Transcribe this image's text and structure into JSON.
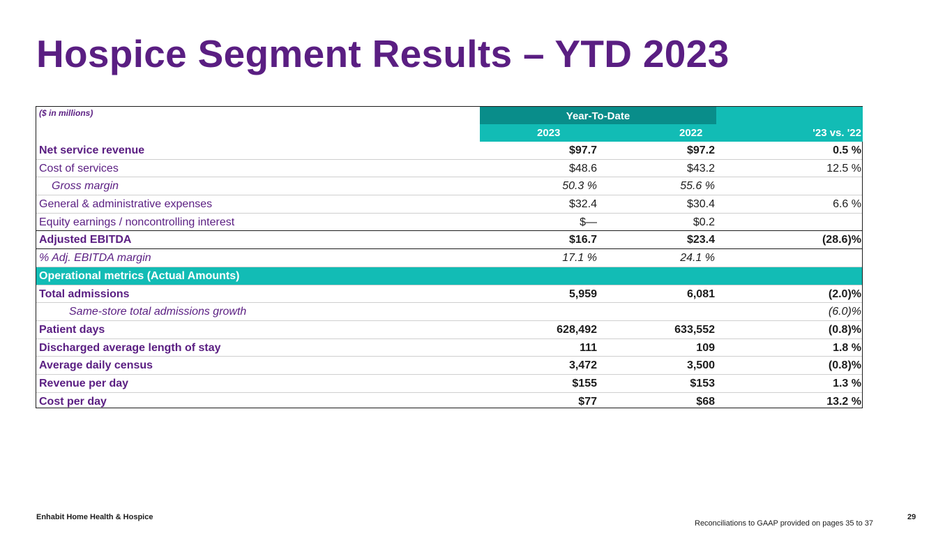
{
  "title": "Hospice Segment Results – YTD 2023",
  "table": {
    "units_label": "($ in millions)",
    "group_header": "Year-To-Date",
    "columns": [
      "2023",
      "2022",
      "'23 vs. '22"
    ],
    "rows": [
      {
        "label": "Net service revenue",
        "v2023": "$97.7",
        "v2022": "$97.2",
        "change": "0.5 %",
        "style": "bold"
      },
      {
        "label": "Cost of services",
        "v2023": "$48.6",
        "v2022": "$43.2",
        "change": "12.5 %",
        "style": "normal"
      },
      {
        "label": "Gross margin",
        "v2023": "50.3 %",
        "v2022": "55.6 %",
        "change": "",
        "style": "italic-indent"
      },
      {
        "label": "General & administrative expenses",
        "v2023": "$32.4",
        "v2022": "$30.4",
        "change": "6.6 %",
        "style": "normal"
      },
      {
        "label": "Equity earnings / noncontrolling interest",
        "v2023": "$—",
        "v2022": "$0.2",
        "change": "",
        "style": "normal-thick"
      },
      {
        "label": "Adjusted EBITDA",
        "v2023": "$16.7",
        "v2022": "$23.4",
        "change": "(28.6)%",
        "style": "bold-thick"
      },
      {
        "label": "%  Adj. EBITDA margin",
        "v2023": "17.1 %",
        "v2022": "24.1 %",
        "change": "",
        "style": "italic"
      },
      {
        "label": "Operational metrics (Actual Amounts)",
        "v2023": "",
        "v2022": "",
        "change": "",
        "style": "section"
      },
      {
        "label": "Total admissions",
        "v2023": "5,959",
        "v2022": "6,081",
        "change": "(2.0)%",
        "style": "bold"
      },
      {
        "label": "Same-store total admissions growth",
        "v2023": "",
        "v2022": "",
        "change": "(6.0)%",
        "style": "italic-indent2"
      },
      {
        "label": "Patient days",
        "v2023": "628,492",
        "v2022": "633,552",
        "change": "(0.8)%",
        "style": "bold"
      },
      {
        "label": "Discharged average length of stay",
        "v2023": "111",
        "v2022": "109",
        "change": "1.8 %",
        "style": "bold"
      },
      {
        "label": "Average daily census",
        "v2023": "3,472",
        "v2022": "3,500",
        "change": "(0.8)%",
        "style": "bold"
      },
      {
        "label": "Revenue per day",
        "v2023": "$155",
        "v2022": "$153",
        "change": "1.3 %",
        "style": "bold"
      },
      {
        "label": "Cost per day",
        "v2023": "$77",
        "v2022": "$68",
        "change": "13.2 %",
        "style": "bold"
      }
    ]
  },
  "footer": {
    "company": "Enhabit Home Health & Hospice",
    "page_number": "29",
    "note": "Reconciliations to GAAP provided on pages 35 to 37"
  },
  "colors": {
    "brand_purple": "#5a1e82",
    "teal": "#12bcb5",
    "dark_teal": "#098d8a"
  }
}
